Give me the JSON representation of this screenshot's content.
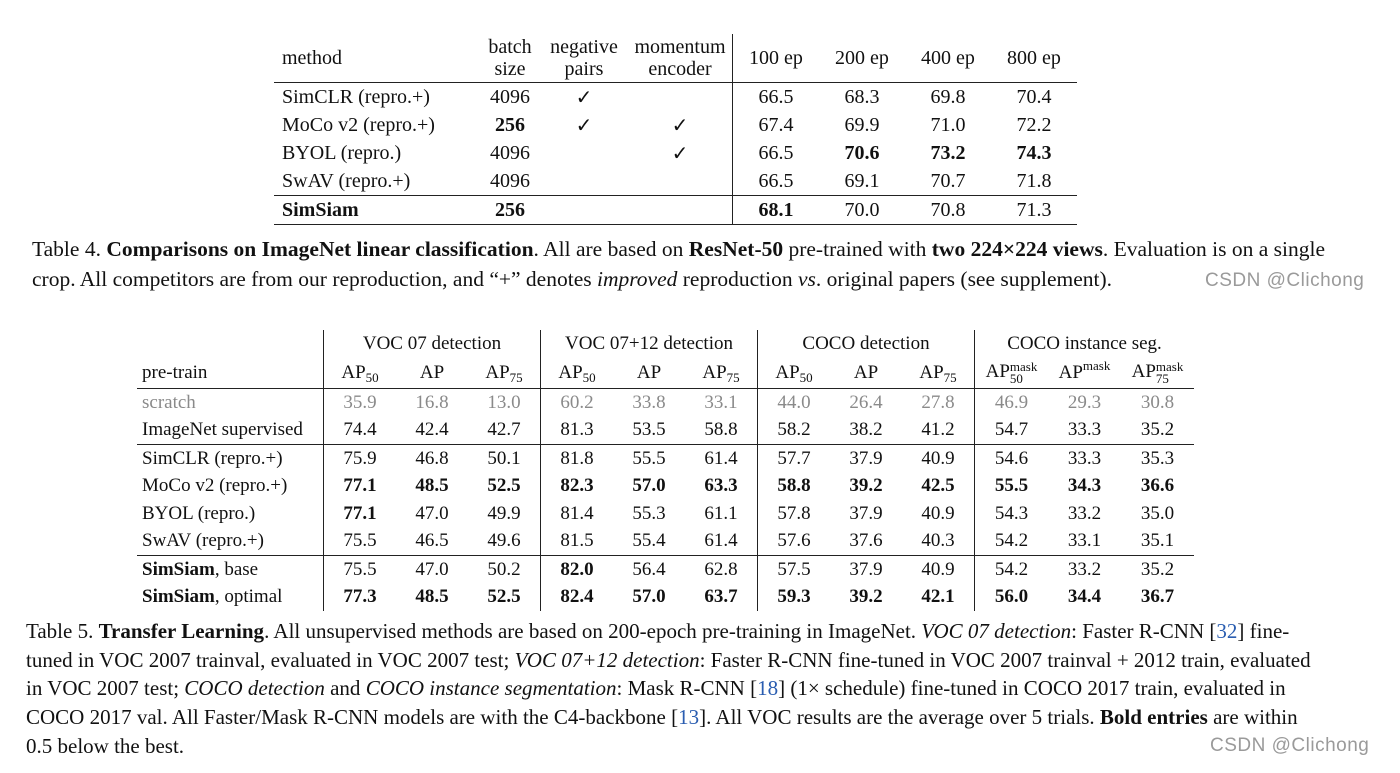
{
  "table4": {
    "headers": {
      "method": "method",
      "batch_size": [
        "batch",
        "size"
      ],
      "negative_pairs": [
        "negative",
        "pairs"
      ],
      "momentum_encoder": [
        "momentum",
        "encoder"
      ],
      "epochs": [
        "100 ep",
        "200 ep",
        "400 ep",
        "800 ep"
      ]
    },
    "rows": [
      {
        "method": "SimCLR (repro.+)",
        "batch": "4096",
        "neg": "✓",
        "mom": "",
        "e100": "66.5",
        "e200": "68.3",
        "e400": "69.8",
        "e800": "70.4"
      },
      {
        "method": "MoCo v2 (repro.+)",
        "batch": "256",
        "neg": "✓",
        "mom": "✓",
        "e100": "67.4",
        "e200": "69.9",
        "e400": "71.0",
        "e800": "72.2"
      },
      {
        "method": "BYOL (repro.)",
        "batch": "4096",
        "neg": "",
        "mom": "✓",
        "e100": "66.5",
        "e200": "70.6",
        "e400": "73.2",
        "e800": "74.3"
      },
      {
        "method": "SwAV (repro.+)",
        "batch": "4096",
        "neg": "",
        "mom": "",
        "e100": "66.5",
        "e200": "69.1",
        "e400": "70.7",
        "e800": "71.8"
      },
      {
        "method": "SimSiam",
        "batch": "256",
        "neg": "",
        "mom": "",
        "e100": "68.1",
        "e200": "70.0",
        "e400": "70.8",
        "e800": "71.3"
      }
    ]
  },
  "caption4": {
    "label": "Table 4.",
    "title": "Comparisons on ImageNet linear classification",
    "t1": ". All are based on ",
    "resnet": "ResNet-50",
    "t2": " pre-trained with ",
    "views": "two 224×224 views",
    "t3": ". Evaluation is on a single crop. All competitors are from our reproduction, and “+” denotes ",
    "improved": "improved",
    "t4": " reproduction ",
    "vs": "vs",
    "t5": ". original papers (see supplement)."
  },
  "table5": {
    "groups": [
      "VOC 07 detection",
      "VOC 07+12 detection",
      "COCO detection",
      "COCO instance seg."
    ],
    "pretrain_label": "pre-train",
    "ap_base": "AP",
    "ap_sub50": "50",
    "ap_sub75": "75",
    "mask_sup": "mask",
    "rows": [
      {
        "name": "scratch",
        "name_rest": "",
        "vals": [
          "35.9",
          "16.8",
          "13.0",
          "60.2",
          "33.8",
          "33.1",
          "44.0",
          "26.4",
          "27.8",
          "46.9",
          "29.3",
          "30.8"
        ]
      },
      {
        "name": "ImageNet supervised",
        "name_rest": "",
        "vals": [
          "74.4",
          "42.4",
          "42.7",
          "81.3",
          "53.5",
          "58.8",
          "58.2",
          "38.2",
          "41.2",
          "54.7",
          "33.3",
          "35.2"
        ]
      },
      {
        "name": "SimCLR (repro.+)",
        "name_rest": "",
        "vals": [
          "75.9",
          "46.8",
          "50.1",
          "81.8",
          "55.5",
          "61.4",
          "57.7",
          "37.9",
          "40.9",
          "54.6",
          "33.3",
          "35.3"
        ]
      },
      {
        "name": "MoCo v2 (repro.+)",
        "name_rest": "",
        "vals": [
          "77.1",
          "48.5",
          "52.5",
          "82.3",
          "57.0",
          "63.3",
          "58.8",
          "39.2",
          "42.5",
          "55.5",
          "34.3",
          "36.6"
        ]
      },
      {
        "name": "BYOL (repro.)",
        "name_rest": "",
        "vals": [
          "77.1",
          "47.0",
          "49.9",
          "81.4",
          "55.3",
          "61.1",
          "57.8",
          "37.9",
          "40.9",
          "54.3",
          "33.2",
          "35.0"
        ]
      },
      {
        "name": "SwAV (repro.+)",
        "name_rest": "",
        "vals": [
          "75.5",
          "46.5",
          "49.6",
          "81.5",
          "55.4",
          "61.4",
          "57.6",
          "37.6",
          "40.3",
          "54.2",
          "33.1",
          "35.1"
        ]
      },
      {
        "name": "SimSiam",
        "name_rest": ", base",
        "vals": [
          "75.5",
          "47.0",
          "50.2",
          "82.0",
          "56.4",
          "62.8",
          "57.5",
          "37.9",
          "40.9",
          "54.2",
          "33.2",
          "35.2"
        ]
      },
      {
        "name": "SimSiam",
        "name_rest": ", optimal",
        "vals": [
          "77.3",
          "48.5",
          "52.5",
          "82.4",
          "57.0",
          "63.7",
          "59.3",
          "39.2",
          "42.1",
          "56.0",
          "34.4",
          "36.7"
        ]
      }
    ]
  },
  "caption5": {
    "label": "Table 5.",
    "title": "Transfer Learning",
    "t1": ". All unsupervised methods are based on 200-epoch pre-training in ImageNet. ",
    "voc07": "VOC 07 detection",
    "t2": ": Faster R-CNN [",
    "ref32": "32",
    "t3": "] fine-tuned in VOC 2007 trainval, evaluated in VOC 2007 test; ",
    "voc0712": "VOC 07+12 detection",
    "t4": ": Faster R-CNN fine-tuned in VOC 2007 trainval + 2012 train, evaluated in VOC 2007 test; ",
    "cocodet": "COCO detection",
    "t5": " and ",
    "cocoinst": "COCO instance segmentation",
    "t6": ": Mask R-CNN [",
    "ref18": "18",
    "t7": "] (1× schedule) fine-tuned in COCO 2017 train, evaluated in COCO 2017 val. All Faster/Mask R-CNN models are with the C4-backbone [",
    "ref13": "13",
    "t8": "]. All VOC results are the average over 5 trials. ",
    "bold": "Bold entries",
    "t9": " are within 0.5 below the best."
  },
  "watermark": "CSDN @Clichong"
}
